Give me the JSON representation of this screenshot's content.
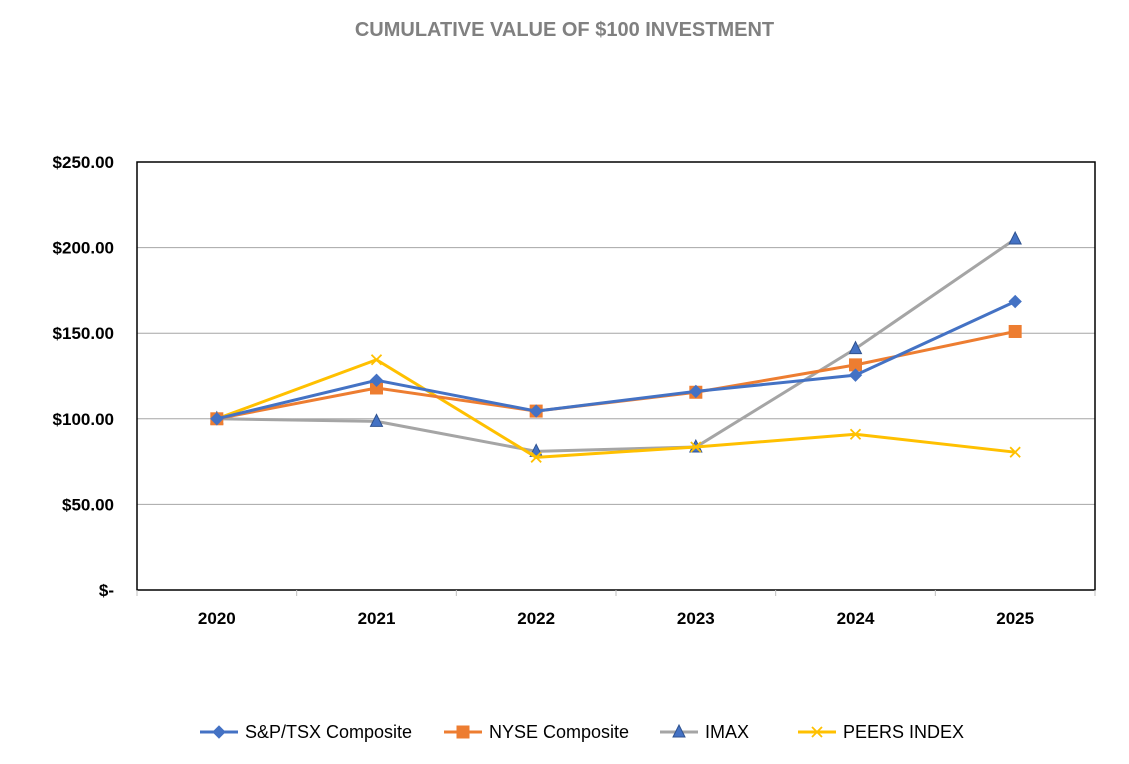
{
  "chart_data": {
    "type": "line",
    "title": "CUMULATIVE VALUE OF $100 INVESTMENT",
    "categories": [
      "2020",
      "2021",
      "2022",
      "2023",
      "2024",
      "2025"
    ],
    "ylim": [
      0,
      250
    ],
    "yticks": [
      0,
      50,
      100,
      150,
      200,
      250
    ],
    "ytick_labels": [
      "$-",
      "$50.00",
      "$100.00",
      "$150.00",
      "$200.00",
      "$250.00"
    ],
    "grid": true,
    "legend_position": "bottom",
    "series": [
      {
        "name": "S&P/TSX Composite",
        "color": "#4472c4",
        "marker": "diamond",
        "values": [
          100,
          122.5,
          104.5,
          116,
          125.5,
          168.5
        ]
      },
      {
        "name": "NYSE Composite",
        "color": "#ed7d31",
        "marker": "square",
        "values": [
          100,
          118,
          104.5,
          115.5,
          131.5,
          151
        ]
      },
      {
        "name": "IMAX",
        "color": "#a5a5a5",
        "marker": "triangle",
        "values": [
          100,
          98.5,
          81,
          83.5,
          141,
          205
        ]
      },
      {
        "name": "PEERS INDEX",
        "color": "#ffc000",
        "marker": "x",
        "values": [
          100,
          134.5,
          77.5,
          83.5,
          91,
          80.5
        ]
      }
    ]
  }
}
